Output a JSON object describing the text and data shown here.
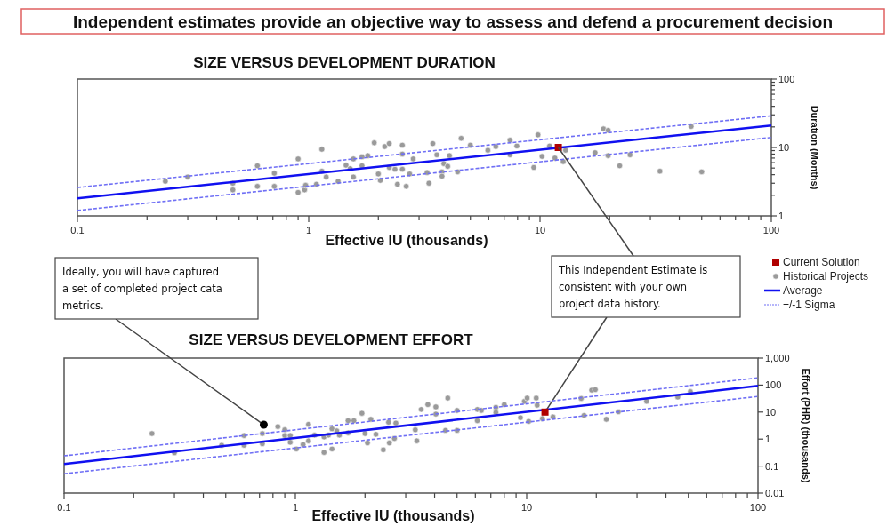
{
  "chart_data": [
    {
      "type": "other",
      "title": "Independent estimates provide an objective way to assess and defend a procurement decision"
    },
    {
      "type": "scatter",
      "title": "SIZE VERSUS DEVELOPMENT DURATION",
      "xlabel": "Effective IU (thousands)",
      "ylabel": "Duration (Months)",
      "log": "xy",
      "xlim": [
        0.1,
        100
      ],
      "ylim": [
        1,
        100
      ],
      "xticks": [
        0.1,
        {
          "value": 0.2,
          "label": null
        },
        {
          "value": 0.3,
          "label": null
        },
        {
          "value": 0.4,
          "label": null
        },
        {
          "value": 0.5,
          "label": null
        },
        {
          "value": 0.6,
          "label": null
        },
        {
          "value": 0.7,
          "label": null
        },
        {
          "value": 0.8,
          "label": null
        },
        {
          "value": 0.9,
          "label": null
        },
        1,
        {
          "value": 2,
          "label": null
        },
        {
          "value": 3,
          "label": null
        },
        {
          "value": 4,
          "label": null
        },
        {
          "value": 5,
          "label": null
        },
        {
          "value": 6,
          "label": null
        },
        {
          "value": 7,
          "label": null
        },
        {
          "value": 8,
          "label": null
        },
        {
          "value": 9,
          "label": null
        },
        10,
        {
          "value": 20,
          "label": null
        },
        {
          "value": 30,
          "label": null
        },
        {
          "value": 40,
          "label": null
        },
        {
          "value": 50,
          "label": null
        },
        {
          "value": 60,
          "label": null
        },
        {
          "value": 70,
          "label": null
        },
        {
          "value": 80,
          "label": null
        },
        {
          "value": 90,
          "label": null
        },
        100
      ],
      "yticks": [
        1,
        {
          "value": 2,
          "label": null
        },
        {
          "value": 3,
          "label": null
        },
        {
          "value": 4,
          "label": null
        },
        {
          "value": 5,
          "label": null
        },
        {
          "value": 6,
          "label": null
        },
        {
          "value": 7,
          "label": null
        },
        {
          "value": 8,
          "label": null
        },
        {
          "value": 9,
          "label": null
        },
        10,
        {
          "value": 20,
          "label": null
        },
        {
          "value": 30,
          "label": null
        },
        {
          "value": 40,
          "label": null
        },
        {
          "value": 50,
          "label": null
        },
        {
          "value": 60,
          "label": null
        },
        {
          "value": 70,
          "label": null
        },
        {
          "value": 80,
          "label": null
        },
        {
          "value": 90,
          "label": null
        },
        100
      ],
      "grid": false,
      "legend": "bottom right",
      "annotations": [
        {
          "text": "This Independent Estimate is consistent with your own project data history.",
          "x": 12,
          "y": 10
        }
      ],
      "series": [
        {
          "name": "Historical Projects",
          "type": "scatter",
          "marker": "circle",
          "color": "#9a9a9a",
          "x": [
            0.24,
            0.3,
            0.47,
            0.47,
            0.6,
            0.6,
            0.71,
            0.71,
            0.9,
            0.9,
            0.96,
            0.97,
            1.14,
            1.14,
            1.08,
            1.19,
            1.34,
            1.45,
            1.51,
            1.56,
            1.56,
            1.7,
            1.7,
            1.8,
            1.92,
            2.0,
            2.04,
            2.13,
            2.23,
            2.23,
            2.36,
            2.42,
            2.54,
            2.54,
            2.54,
            2.64,
            2.73,
            2.83,
            3.31,
            3.25,
            3.44,
            3.58,
            3.77,
            3.77,
            3.84,
            3.99,
            4.06,
            4.4,
            4.56,
            5.0,
            5.95,
            6.44,
            7.42,
            7.42,
            7.94,
            9.4,
            9.8,
            10.2,
            11,
            11.6,
            12.6,
            12.9,
            17.3,
            18.8,
            19.7,
            19.7,
            22.1,
            24.5,
            33,
            45,
            50
          ],
          "values": [
            3.2,
            3.7,
            3.0,
            2.4,
            5.4,
            2.7,
            4.2,
            2.7,
            6.8,
            2.2,
            2.4,
            2.8,
            9.4,
            4.5,
            2.9,
            3.7,
            3.2,
            5.5,
            4.9,
            3.7,
            6.8,
            7.3,
            5.4,
            7.6,
            11.7,
            4.1,
            3.3,
            10.3,
            11.4,
            5.1,
            4.8,
            2.9,
            10.8,
            8.0,
            4.8,
            2.7,
            4.1,
            6.8,
            3.0,
            4.3,
            11.4,
            7.8,
            4.4,
            3.8,
            5.8,
            5.3,
            7.6,
            4.4,
            13.6,
            10.8,
            9.1,
            10.3,
            12.8,
            7.8,
            10.5,
            5.1,
            15.3,
            7.4,
            10.5,
            7.0,
            6.2,
            9.1,
            8.4,
            18.7,
            17.8,
            7.6,
            5.4,
            7.8,
            4.5,
            20.3,
            4.4
          ]
        },
        {
          "name": "Average",
          "type": "line",
          "color": "#1010f0",
          "line_style": "solid",
          "x": [
            0.1,
            100
          ],
          "values": [
            1.8,
            21
          ]
        },
        {
          "name": "+/-1 Sigma",
          "type": "line",
          "color": "#6f6ff5",
          "line_style": "dashed",
          "x": [
            0.1,
            100
          ],
          "values": [
            2.6,
            29
          ]
        },
        {
          "type": "line",
          "color": "#6f6ff5",
          "line_style": "dashed",
          "x": [
            0.1,
            100
          ],
          "values": [
            1.2,
            14
          ]
        },
        {
          "name": "Current Solution",
          "type": "scatter",
          "marker": "square",
          "color": "#b00000",
          "x": [
            12
          ],
          "values": [
            10
          ]
        }
      ]
    },
    {
      "type": "scatter",
      "title": "SIZE VERSUS DEVELOPMENT EFFORT",
      "xlabel": "Effective IU (thousands)",
      "ylabel": "Effort (PHR) (thousands)",
      "log": "xy",
      "xlim": [
        0.1,
        100
      ],
      "ylim": [
        0.01,
        1000
      ],
      "xticks": [
        0.1,
        {
          "value": 0.2,
          "label": null
        },
        {
          "value": 0.3,
          "label": null
        },
        {
          "value": 0.4,
          "label": null
        },
        {
          "value": 0.5,
          "label": null
        },
        {
          "value": 0.6,
          "label": null
        },
        {
          "value": 0.7,
          "label": null
        },
        {
          "value": 0.8,
          "label": null
        },
        {
          "value": 0.9,
          "label": null
        },
        1,
        {
          "value": 2,
          "label": null
        },
        {
          "value": 3,
          "label": null
        },
        {
          "value": 4,
          "label": null
        },
        {
          "value": 5,
          "label": null
        },
        {
          "value": 6,
          "label": null
        },
        {
          "value": 7,
          "label": null
        },
        {
          "value": 8,
          "label": null
        },
        {
          "value": 9,
          "label": null
        },
        10,
        {
          "value": 20,
          "label": null
        },
        {
          "value": 30,
          "label": null
        },
        {
          "value": 40,
          "label": null
        },
        {
          "value": 50,
          "label": null
        },
        {
          "value": 60,
          "label": null
        },
        {
          "value": 70,
          "label": null
        },
        {
          "value": 80,
          "label": null
        },
        {
          "value": 90,
          "label": null
        },
        100
      ],
      "yticks": [
        0.01,
        0.1,
        1,
        10,
        100,
        {
          "value": 1000,
          "label": "1,000"
        }
      ],
      "grid": false,
      "legend": false,
      "annotations": [
        {
          "text": "Ideally, you will have captured a set of completed project cata metrics.",
          "x": 0.73,
          "y": 3.4
        }
      ],
      "series": [
        {
          "type": "scatter",
          "marker": "circle",
          "color": "#9a9a9a",
          "x": [
            0.24,
            0.3,
            0.48,
            0.6,
            0.6,
            0.72,
            0.72,
            0.84,
            0.9,
            0.9,
            0.95,
            0.95,
            1.01,
            1.08,
            1.14,
            1.14,
            1.21,
            1.33,
            1.33,
            1.39,
            1.44,
            1.44,
            1.51,
            1.55,
            1.69,
            1.69,
            1.79,
            1.94,
            2.0,
            2.05,
            2.12,
            2.23,
            2.4,
            2.53,
            2.55,
            2.68,
            2.72,
            3.35,
            3.3,
            3.5,
            3.74,
            4.05,
            4.05,
            4.46,
            4.56,
            5.0,
            5.0,
            6.12,
            6.12,
            6.37,
            7.36,
            7.36,
            8.0,
            9.4,
            9.78,
            10.05,
            10.2,
            11,
            11.1,
            11.7,
            13,
            17.2,
            17.7,
            19.1,
            19.8,
            22.1,
            24.9,
            33,
            45,
            51
          ],
          "values": [
            1.6,
            0.31,
            0.59,
            1.35,
            0.59,
            1.6,
            0.67,
            2.9,
            2.2,
            1.35,
            1.35,
            0.76,
            0.43,
            0.63,
            3.5,
            0.86,
            1.4,
            1.2,
            0.32,
            1.4,
            2.4,
            0.43,
            2.0,
            1.4,
            4.8,
            1.7,
            4.8,
            9.0,
            1.6,
            0.72,
            5.4,
            1.5,
            0.4,
            4.2,
            0.72,
            1.05,
            3.9,
            0.86,
            2.2,
            12.5,
            19,
            15.6,
            8.4,
            2.1,
            33,
            11.5,
            2.1,
            12.5,
            4.8,
            11.5,
            15,
            9.7,
            19,
            6.2,
            25,
            33,
            4.5,
            33,
            18,
            5.7,
            6.6,
            32,
            7.5,
            65,
            68,
            5.4,
            10.2,
            25,
            36,
            57
          ]
        },
        {
          "type": "line",
          "color": "#1010f0",
          "line_style": "solid",
          "x": [
            0.1,
            100
          ],
          "values": [
            0.12,
            93
          ]
        },
        {
          "type": "line",
          "color": "#6f6ff5",
          "line_style": "dashed",
          "x": [
            0.1,
            100
          ],
          "values": [
            0.24,
            186
          ]
        },
        {
          "type": "line",
          "color": "#6f6ff5",
          "line_style": "dashed",
          "x": [
            0.1,
            100
          ],
          "values": [
            0.052,
            38
          ]
        },
        {
          "type": "scatter",
          "marker": "square",
          "color": "#b00000",
          "x": [
            12
          ],
          "values": [
            10
          ]
        }
      ]
    }
  ]
}
